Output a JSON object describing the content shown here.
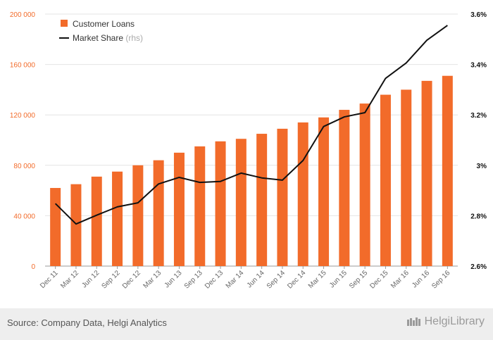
{
  "chart_data": {
    "type": "bar+line",
    "categories": [
      "Dec 11",
      "Mar 12",
      "Jun 12",
      "Sep 12",
      "Dec 12",
      "Mar 13",
      "Jun 13",
      "Sep 13",
      "Dec 13",
      "Mar 14",
      "Jun 14",
      "Sep 14",
      "Dec 14",
      "Mar 15",
      "Jun 15",
      "Sep 15",
      "Dec 15",
      "Mar 16",
      "Jun 16",
      "Sep 16"
    ],
    "series": [
      {
        "name": "Customer Loans",
        "type": "bar",
        "axis": "left",
        "color": "#f26b2a",
        "values": [
          62000,
          65000,
          71000,
          75000,
          80000,
          84000,
          90000,
          95000,
          99000,
          101000,
          105000,
          109000,
          114000,
          118000,
          124000,
          129000,
          136000,
          140000,
          147000,
          151000
        ]
      },
      {
        "name": "Market Share",
        "type": "line",
        "axis": "right",
        "color": "#111111",
        "values": [
          2.848,
          2.767,
          2.802,
          2.835,
          2.851,
          2.926,
          2.952,
          2.932,
          2.936,
          2.969,
          2.95,
          2.941,
          3.019,
          3.154,
          3.192,
          3.209,
          3.345,
          3.406,
          3.496,
          3.555
        ]
      }
    ],
    "y_left": {
      "ylim": [
        0,
        200000
      ],
      "ticks": [
        0,
        40000,
        80000,
        120000,
        160000,
        200000
      ],
      "tick_labels": [
        "0",
        "40 000",
        "80 000",
        "120 000",
        "160 000",
        "200 000"
      ]
    },
    "y_right": {
      "ylim": [
        2.6,
        3.6
      ],
      "ticks": [
        2.6,
        2.8,
        3.0,
        3.2,
        3.4,
        3.6
      ],
      "tick_labels": [
        "2.6%",
        "2.8%",
        "3%",
        "3.2%",
        "3.4%",
        "3.6%"
      ]
    },
    "grid": true,
    "legend_position": "top-left"
  },
  "legend": {
    "loans_label": "Customer Loans",
    "share_label": "Market Share",
    "share_suffix": "(rhs)"
  },
  "footer": {
    "source": "Source: Company Data, Helgi Analytics",
    "brand": "HelgiLibrary"
  }
}
